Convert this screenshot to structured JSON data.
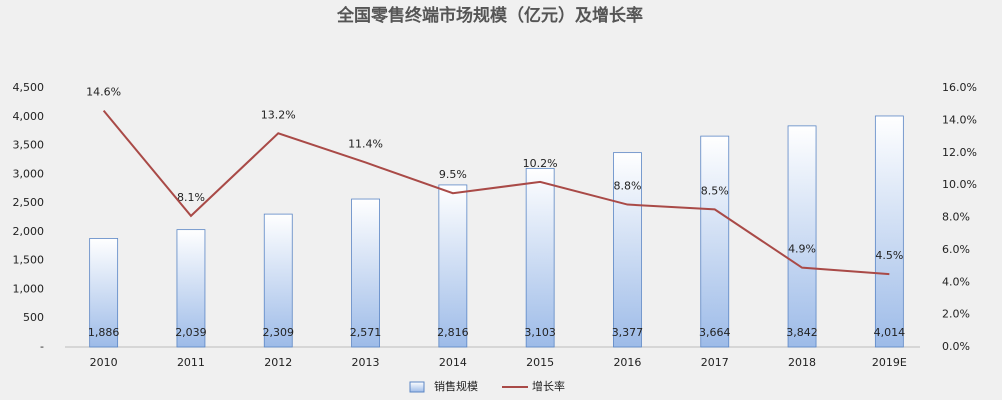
{
  "chart_data": {
    "type": "bar",
    "title": "全国零售终端市场规模（亿元）及增长率",
    "categories": [
      "2010",
      "2011",
      "2012",
      "2013",
      "2014",
      "2015",
      "2016",
      "2017",
      "2018",
      "2019E"
    ],
    "series": [
      {
        "name": "销售规模",
        "color": "#c6d9f1",
        "type": "bar",
        "axis": "y",
        "values": [
          1886,
          2039,
          2309,
          2571,
          2816,
          3103,
          3377,
          3664,
          3842,
          4014
        ],
        "value_labels": [
          "1,886",
          "2,039",
          "2,309",
          "2,571",
          "2,816",
          "3,103",
          "3,377",
          "3,664",
          "3,842",
          "4,014"
        ]
      },
      {
        "name": "增长率",
        "color": "#a94a47",
        "type": "line",
        "axis": "y2",
        "values": [
          14.6,
          8.1,
          13.2,
          11.4,
          9.5,
          10.2,
          8.8,
          8.5,
          4.9,
          4.5
        ],
        "value_labels": [
          "14.6%",
          "8.1%",
          "13.2%",
          "11.4%",
          "9.5%",
          "10.2%",
          "8.8%",
          "8.5%",
          "4.9%",
          "4.5%"
        ]
      }
    ],
    "ylim": [
      0,
      4500
    ],
    "yticks": [
      {
        "value": 0,
        "label": "-"
      },
      500,
      {
        "value": 1000,
        "label": "1,000"
      },
      {
        "value": 1500,
        "label": "1,500"
      },
      {
        "value": 2000,
        "label": "2,000"
      },
      {
        "value": 2500,
        "label": "2,500"
      },
      {
        "value": 3000,
        "label": "3,000"
      },
      {
        "value": 3500,
        "label": "3,500"
      },
      {
        "value": 4000,
        "label": "4,000"
      },
      {
        "value": 4500,
        "label": "4,500"
      }
    ],
    "y2lim": [
      0,
      16
    ],
    "y2ticks": [
      {
        "value": 0,
        "label": "0.0%"
      },
      {
        "value": 2,
        "label": "2.0%"
      },
      {
        "value": 4,
        "label": "4.0%"
      },
      {
        "value": 6,
        "label": "6.0%"
      },
      {
        "value": 8,
        "label": "8.0%"
      },
      {
        "value": 10,
        "label": "10.0%"
      },
      {
        "value": 12,
        "label": "12.0%"
      },
      {
        "value": 14,
        "label": "14.0%"
      },
      {
        "value": 16,
        "label": "16.0%"
      }
    ],
    "grid": false,
    "legend": "bottom"
  }
}
